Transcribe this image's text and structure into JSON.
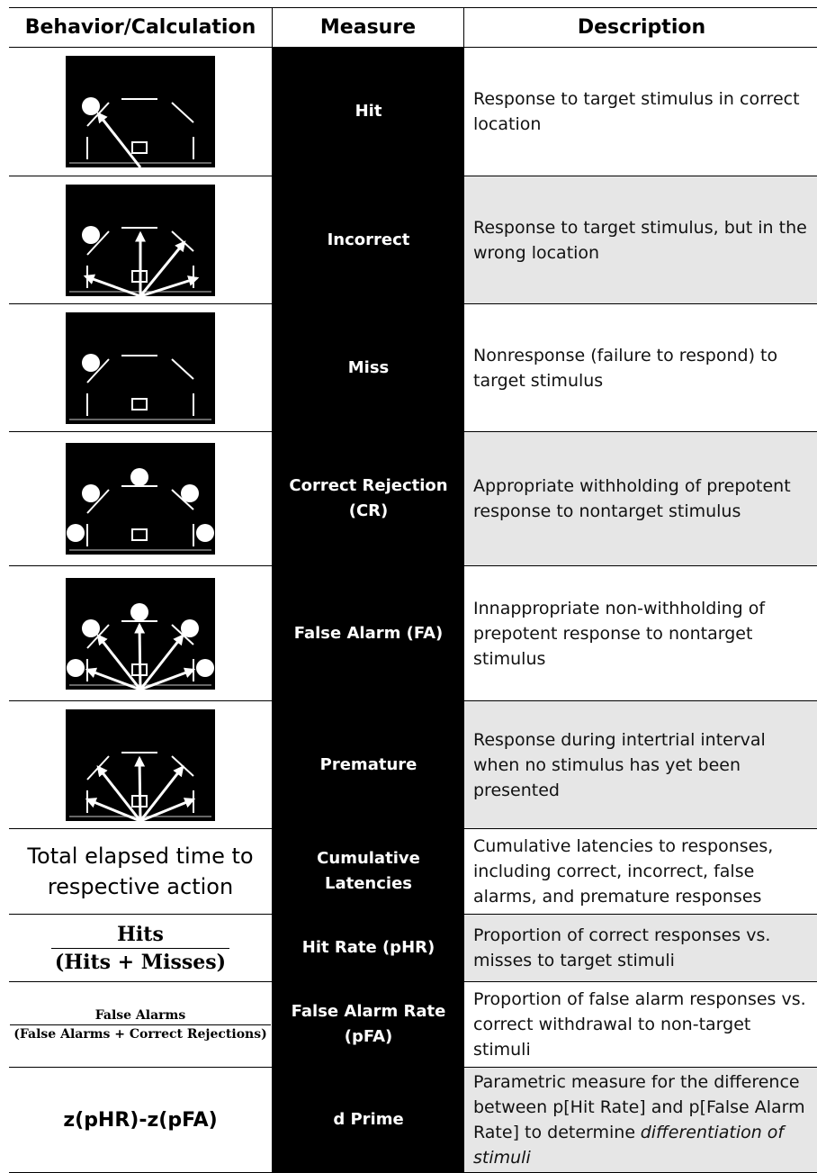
{
  "header": {
    "columns": [
      "Behavior/Calculation",
      "Measure",
      "Description"
    ]
  },
  "rows": [
    {
      "measure": "Hit",
      "description": "Response to target stimulus in correct location"
    },
    {
      "measure": "Incorrect",
      "description": "Response to target stimulus, but in the wrong location"
    },
    {
      "measure": "Miss",
      "description": "Nonresponse (failure to respond) to target stimulus"
    },
    {
      "measure": "Correct Rejection (CR)",
      "description": "Appropriate withholding of prepotent response to nontarget stimulus"
    },
    {
      "measure": "False Alarm (FA)",
      "description": "Innappropriate non-withholding of prepotent response to nontarget stimulus"
    },
    {
      "measure": "Premature",
      "description": "Response during intertrial interval when no stimulus has yet been presented"
    },
    {
      "behavior": "Total elapsed time to respective action",
      "measure": "Cumulative Latencies",
      "description": "Cumulative latencies to responses, including correct, incorrect, false alarms, and premature responses"
    },
    {
      "behavior": {
        "numerator": "Hits",
        "denominator": "(Hits + Misses)"
      },
      "measure": "Hit Rate (pHR)",
      "description": "Proportion of correct responses vs. misses to target stimuli"
    },
    {
      "behavior": {
        "numerator": "False Alarms",
        "denominator": "(False Alarms + Correct Rejections)"
      },
      "measure": "False Alarm Rate (pFA)",
      "description": "Proportion of false alarm responses vs. correct withdrawal to non-target stimuli"
    },
    {
      "behavior": "z(pHR)-z(pFA)",
      "measure": "d Prime",
      "description": "Parametric measure for the difference between p[Hit Rate] and p[False Alarm Rate] to determine",
      "description_emphasis": "differentiation of stimuli"
    }
  ]
}
